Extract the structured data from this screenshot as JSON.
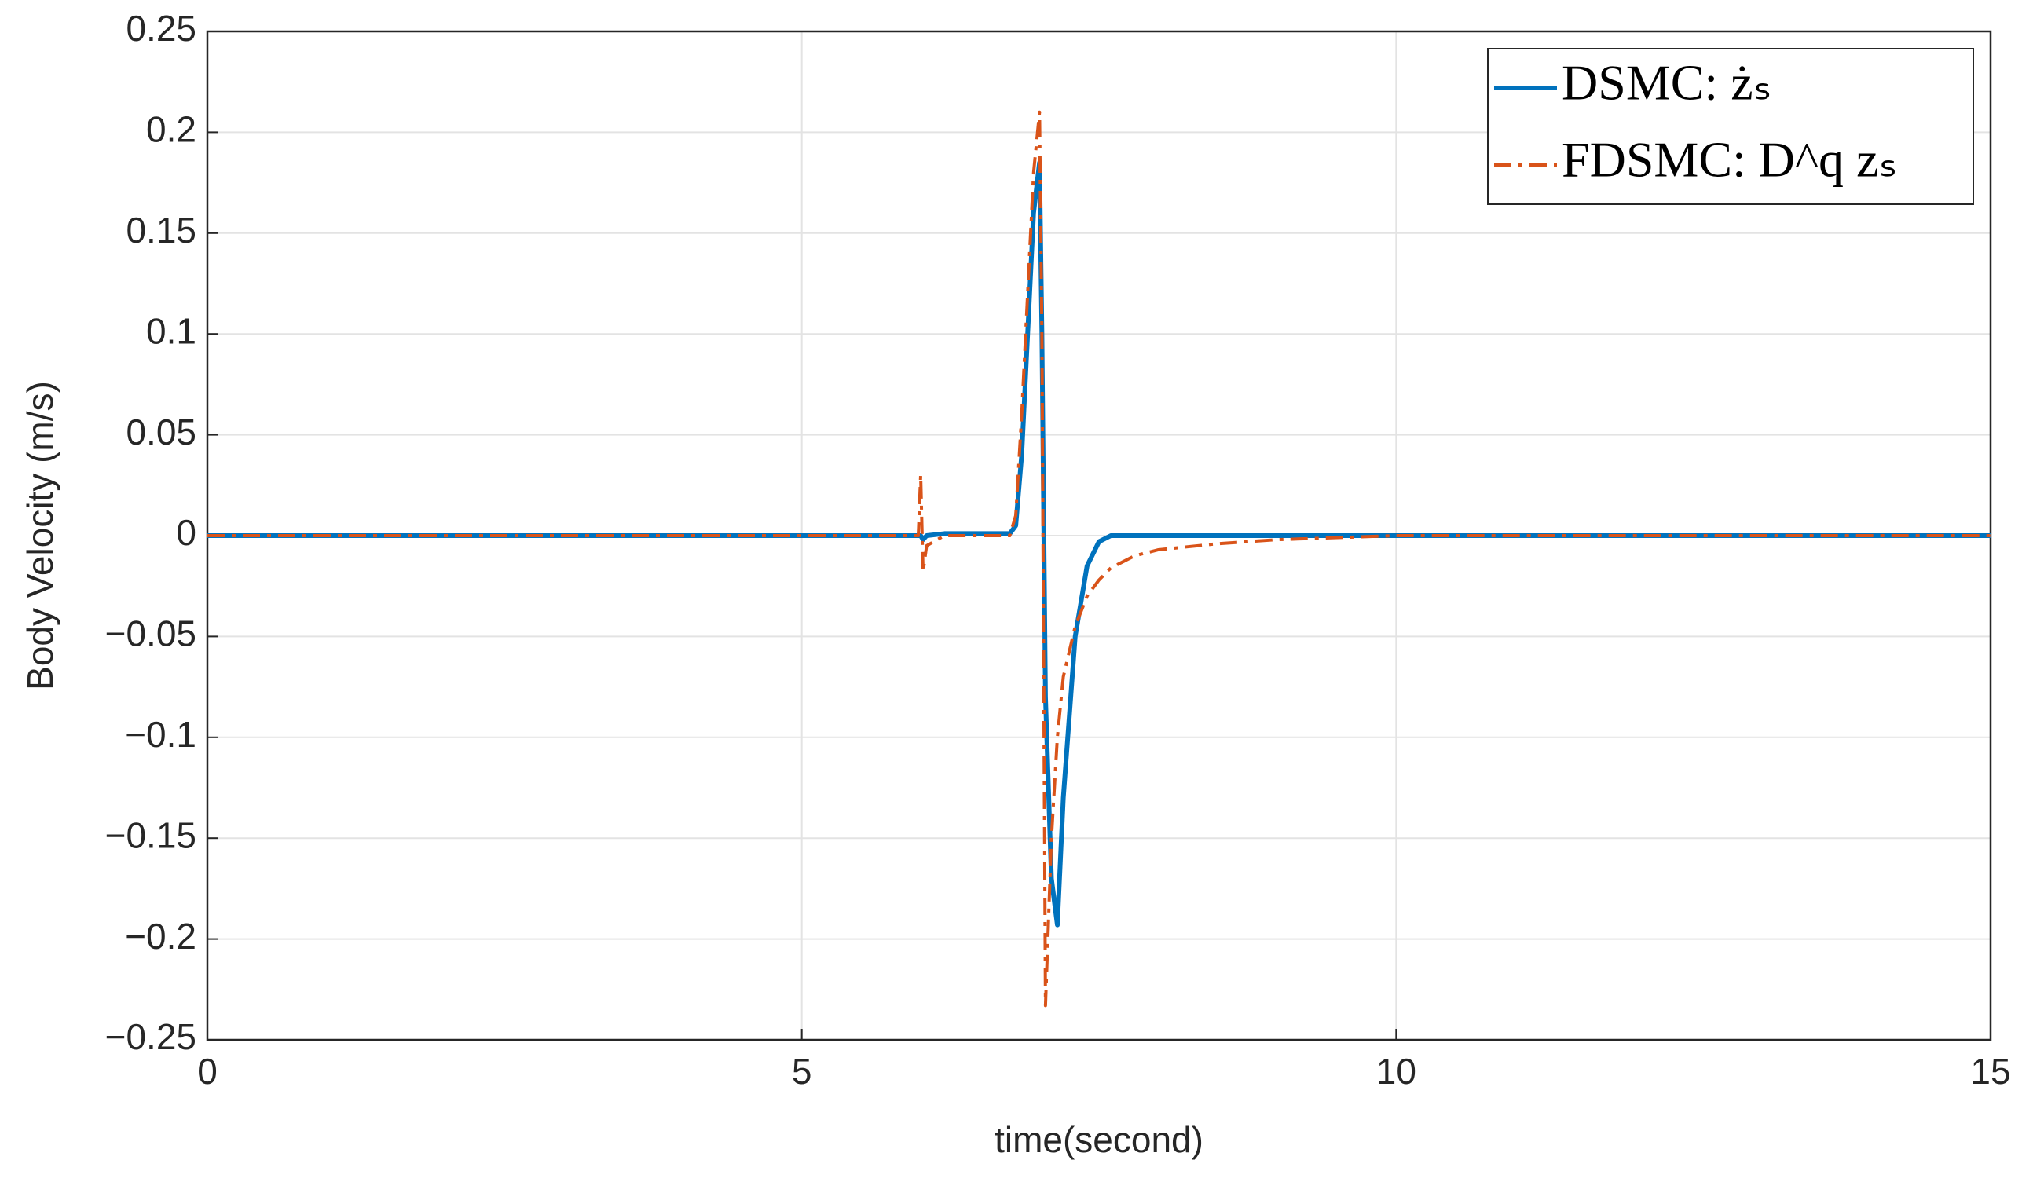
{
  "chart_data": {
    "type": "line",
    "x_label": "time(second)",
    "y_label": "Body Velocity (m/s)",
    "x": [
      0,
      5.98,
      6.0,
      6.02,
      6.05,
      6.2,
      6.5,
      6.75,
      6.8,
      6.85,
      6.9,
      6.95,
      7.0,
      7.02,
      7.05,
      7.1,
      7.15,
      7.2,
      7.3,
      7.4,
      7.5,
      7.6,
      7.8,
      8.0,
      8.5,
      9.0,
      10,
      15
    ],
    "series": [
      {
        "name": "DSMC: żₛ",
        "color": "#0072BD",
        "style": "solid",
        "values": [
          0,
          0,
          0,
          -0.002,
          0,
          0.001,
          0.001,
          0.001,
          0.005,
          0.04,
          0.1,
          0.16,
          0.185,
          0.1,
          -0.08,
          -0.17,
          -0.193,
          -0.13,
          -0.05,
          -0.015,
          -0.003,
          0,
          0,
          0,
          0,
          0,
          0,
          0
        ]
      },
      {
        "name": "FDSMC: D^q zₛ",
        "color": "#D95319",
        "style": "dashdot",
        "values": [
          0,
          0,
          0.03,
          -0.018,
          -0.005,
          0,
          0,
          0,
          0.01,
          0.06,
          0.12,
          0.18,
          0.21,
          0.1,
          -0.233,
          -0.15,
          -0.1,
          -0.07,
          -0.045,
          -0.03,
          -0.022,
          -0.016,
          -0.01,
          -0.007,
          -0.004,
          -0.002,
          0,
          0
        ]
      }
    ],
    "xlim": [
      0,
      15
    ],
    "xticks": [
      0,
      5,
      10,
      15
    ],
    "ylim": [
      -0.25,
      0.25
    ],
    "yticks": [
      {
        "value": -0.25,
        "label": "−0.25"
      },
      {
        "value": -0.2,
        "label": "−0.2"
      },
      {
        "value": -0.15,
        "label": "−0.15"
      },
      {
        "value": -0.1,
        "label": "−0.1"
      },
      {
        "value": -0.05,
        "label": "−0.05"
      },
      0,
      0.05,
      0.1,
      0.15,
      0.2,
      0.25
    ],
    "grid": true,
    "legend": "top-right"
  }
}
